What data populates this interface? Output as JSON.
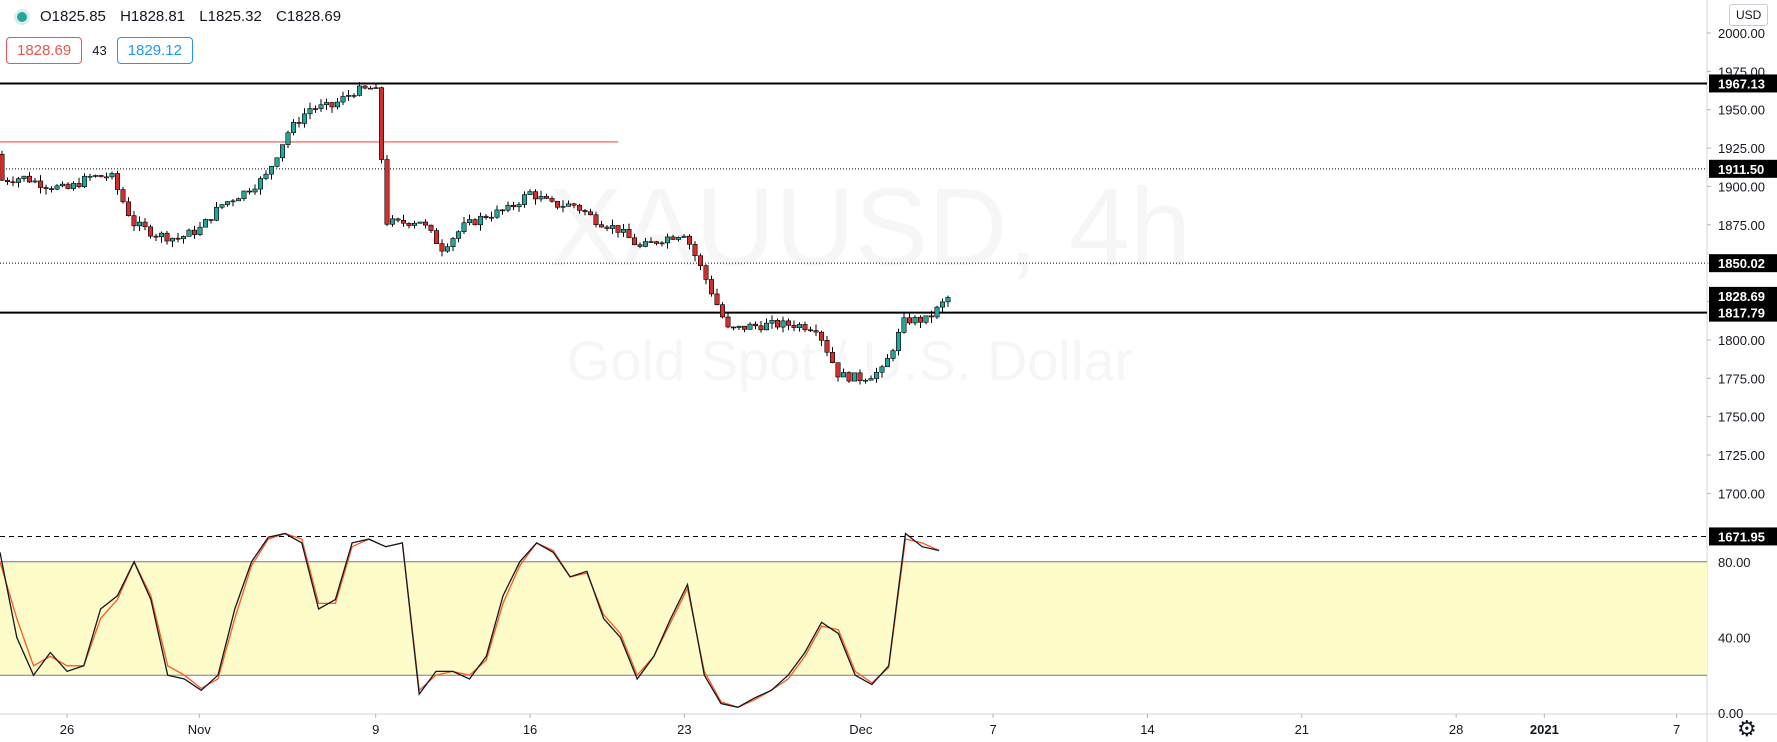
{
  "legend": {
    "open": "O1825.85",
    "high": "H1828.81",
    "low": "L1825.32",
    "close": "C1828.69",
    "sell_price": "1828.69",
    "spread": "43",
    "buy_price": "1829.12"
  },
  "currency_label": "USD",
  "watermark": {
    "symbol": "XAUUSD, 4h",
    "description": "Gold Spot / U.S. Dollar"
  },
  "colors": {
    "up": "#26a69a",
    "down": "#d32f2f",
    "stoch_k": "#131722",
    "stoch_d": "#ff5722",
    "band_fill": "#fefcc8"
  },
  "chart_data": [
    {
      "type": "candlestick",
      "y_scale_labels": [
        "2000.00",
        "1975.00",
        "1950.00",
        "1925.00",
        "1900.00",
        "1875.00",
        "1850.00",
        "1825.00",
        "1800.00",
        "1775.00",
        "1750.00",
        "1725.00",
        "1700.00"
      ],
      "x_tick_labels": [
        "26",
        "Nov",
        "9",
        "16",
        "23",
        "Dec",
        "7",
        "14",
        "21",
        "28",
        "2021",
        "7"
      ],
      "ylim": [
        1665,
        2012
      ],
      "price_marker": {
        "value": 1828.69,
        "label": "1828.69"
      },
      "horizontal_levels": [
        {
          "value": 1967.13,
          "label": "1967.13",
          "style": "solid"
        },
        {
          "value": 1911.5,
          "label": "1911.50",
          "style": "dotted"
        },
        {
          "value": 1850.02,
          "label": "1850.02",
          "style": "dotted"
        },
        {
          "value": 1817.79,
          "label": "1817.79",
          "style": "solid"
        },
        {
          "value": 1671.95,
          "label": "1671.95",
          "style": "dashed"
        }
      ],
      "red_line": {
        "value": 1929,
        "x_start": "Oct 22",
        "x_end": "Nov 20"
      },
      "close_path": [
        [
          "Oct 22",
          1921
        ],
        [
          "Oct 23",
          1904
        ],
        [
          "Oct 24",
          1906
        ],
        [
          "Oct 25",
          1901
        ],
        [
          "Oct 26",
          1898
        ],
        [
          "Oct 27",
          1906
        ],
        [
          "Oct 28",
          1907
        ],
        [
          "Oct 29",
          1876
        ],
        [
          "Oct 30",
          1869
        ],
        [
          "Oct 31",
          1866
        ],
        [
          "Nov 1",
          1872
        ],
        [
          "Nov 2",
          1888
        ],
        [
          "Nov 3",
          1896
        ],
        [
          "Nov 4",
          1906
        ],
        [
          "Nov 5",
          1935
        ],
        [
          "Nov 6",
          1951
        ],
        [
          "Nov 7",
          1952
        ],
        [
          "Nov 8",
          1962
        ],
        [
          "Nov 9",
          1964
        ],
        [
          "Nov 9.5",
          1877
        ],
        [
          "Nov 10",
          1876
        ],
        [
          "Nov 11",
          1878
        ],
        [
          "Nov 12",
          1860
        ],
        [
          "Nov 13",
          1874
        ],
        [
          "Nov 14",
          1881
        ],
        [
          "Nov 15",
          1885
        ],
        [
          "Nov 16",
          1896
        ],
        [
          "Nov 17",
          1888
        ],
        [
          "Nov 18",
          1888
        ],
        [
          "Nov 19",
          1878
        ],
        [
          "Nov 20",
          1872
        ],
        [
          "Nov 21",
          1860
        ],
        [
          "Nov 22",
          1866
        ],
        [
          "Nov 23",
          1870
        ],
        [
          "Nov 24",
          1839
        ],
        [
          "Nov 25",
          1806
        ],
        [
          "Nov 26",
          1809
        ],
        [
          "Nov 27",
          1810
        ],
        [
          "Nov 28",
          1810
        ],
        [
          "Nov 29",
          1808
        ],
        [
          "Nov 30",
          1777
        ],
        [
          "Dec 1",
          1775
        ],
        [
          "Dec 2",
          1780
        ],
        [
          "Dec 3",
          1813
        ],
        [
          "Dec 4",
          1813
        ],
        [
          "Dec 5",
          1828
        ]
      ]
    },
    {
      "type": "line",
      "indicator": "stochastic",
      "y_scale_labels": [
        "80.00",
        "40.00",
        "0.00"
      ],
      "ylim": [
        -5,
        110
      ],
      "band": [
        20,
        80
      ],
      "series_k": [
        85,
        40,
        20,
        32,
        22,
        25,
        55,
        62,
        80,
        60,
        20,
        18,
        12,
        20,
        55,
        80,
        93,
        95,
        90,
        55,
        60,
        90,
        92,
        88,
        90,
        10,
        22,
        22,
        18,
        30,
        62,
        80,
        90,
        85,
        72,
        75,
        50,
        40,
        18,
        30,
        50,
        68,
        20,
        5,
        3,
        8,
        12,
        20,
        32,
        48,
        42,
        20,
        15,
        25,
        95,
        88,
        86
      ],
      "series_d": [
        80,
        50,
        25,
        30,
        25,
        25,
        50,
        60,
        80,
        62,
        25,
        20,
        13,
        18,
        50,
        78,
        92,
        95,
        92,
        58,
        58,
        88,
        92,
        88,
        90,
        12,
        20,
        22,
        20,
        28,
        58,
        78,
        90,
        86,
        72,
        74,
        52,
        42,
        20,
        30,
        48,
        66,
        22,
        6,
        3,
        7,
        12,
        18,
        30,
        46,
        44,
        22,
        16,
        24,
        92,
        90,
        86
      ]
    }
  ]
}
